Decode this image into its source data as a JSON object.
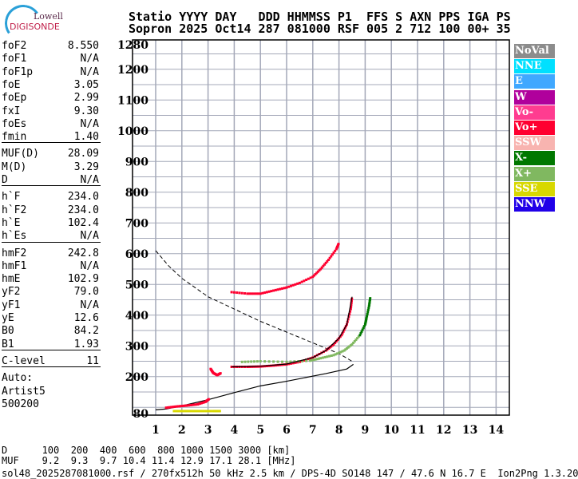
{
  "logo": {
    "line1": "Lowell",
    "line2": "DIGISONDE"
  },
  "header": {
    "line1": "Statio YYYY DAY   DDD HHMMSS P1  FFS S AXN PPS IGA PS",
    "line2": "Sopron 2025 Oct14 287 081000 RSF 005 2 712 100 00+ 35"
  },
  "params": {
    "groups": [
      [
        [
          "foF2",
          "8.550"
        ],
        [
          "foF1",
          "N/A"
        ],
        [
          "foF1p",
          "N/A"
        ],
        [
          "foE",
          "3.05"
        ],
        [
          "foEp",
          "2.99"
        ],
        [
          "fxI",
          "9.30"
        ],
        [
          "foEs",
          "N/A"
        ],
        [
          "fmin",
          "1.40"
        ]
      ],
      [
        [
          "MUF(D)",
          "28.09"
        ],
        [
          "M(D)",
          "3.29"
        ],
        [
          "D",
          "N/A"
        ]
      ],
      [
        [
          "h`F",
          "234.0"
        ],
        [
          "h`F2",
          "234.0"
        ],
        [
          "h`E",
          "102.4"
        ],
        [
          "h`Es",
          "N/A"
        ]
      ],
      [
        [
          "hmF2",
          "242.8"
        ],
        [
          "hmF1",
          "N/A"
        ],
        [
          "hmE",
          "102.9"
        ],
        [
          "yF2",
          "79.0"
        ],
        [
          "yF1",
          "N/A"
        ],
        [
          "yE",
          "12.6"
        ],
        [
          "B0",
          "84.2"
        ],
        [
          "B1",
          "1.93"
        ]
      ],
      [
        [
          "C-level",
          "11"
        ]
      ]
    ],
    "auto": [
      "Auto:",
      "Artist5",
      "500200"
    ]
  },
  "legend": [
    {
      "label": "NoVal",
      "color": "#8c8c8c"
    },
    {
      "label": "NNE",
      "color": "#00e0ff"
    },
    {
      "label": "E",
      "color": "#40a8ff"
    },
    {
      "label": "W",
      "color": "#b0009c"
    },
    {
      "label": "Vo-",
      "color": "#ff3c90"
    },
    {
      "label": "Vo+",
      "color": "#ff0030"
    },
    {
      "label": "SSW",
      "color": "#f8b4b0"
    },
    {
      "label": "X-",
      "color": "#007800"
    },
    {
      "label": "X+",
      "color": "#80b860"
    },
    {
      "label": "SSE",
      "color": "#d8d800"
    },
    {
      "label": "NNW",
      "color": "#2000e8"
    }
  ],
  "footer": {
    "d_row": "D      100  200  400  600  800 1000 1500 3000 [km]",
    "muf_row": "MUF    9.2  9.3  9.7 10.4 11.4 12.9 17.1 28.1 [MHz]",
    "info": "sol48_2025287081000.rsf / 270fx512h 50 kHz 2.5 km / DPS-4D SO148 147 / 47.6 N 16.7 E  Ion2Png 1.3.20"
  },
  "chart_data": {
    "type": "scatter",
    "xlim": [
      1,
      14.5
    ],
    "ylim": [
      80,
      1280
    ],
    "xticks": [
      "1",
      "2",
      "3",
      "4",
      "5",
      "6",
      "7",
      "8",
      "9",
      "10",
      "11",
      "12",
      "13",
      "14"
    ],
    "yticks": [
      "80",
      "200",
      "300",
      "400",
      "500",
      "600",
      "700",
      "800",
      "900",
      "1000",
      "1100",
      "1200",
      "1280"
    ],
    "grid": true,
    "legend_placement": "right",
    "series": [
      {
        "name": "Vo+",
        "color": "#ff0030",
        "points": [
          [
            3.9,
            232
          ],
          [
            4.5,
            232
          ],
          [
            5,
            233
          ],
          [
            5.5,
            236
          ],
          [
            6,
            240
          ],
          [
            6.5,
            248
          ],
          [
            7,
            262
          ],
          [
            7.5,
            285
          ],
          [
            7.8,
            305
          ],
          [
            8.1,
            335
          ],
          [
            8.3,
            370
          ],
          [
            8.45,
            420
          ],
          [
            8.5,
            460
          ]
        ]
      },
      {
        "name": "Vo+",
        "color": "#ff0030",
        "points": [
          [
            1.4,
            99
          ],
          [
            1.8,
            103
          ],
          [
            2.2,
            106
          ],
          [
            2.6,
            110
          ],
          [
            2.9,
            118
          ],
          [
            3.05,
            128
          ]
        ]
      },
      {
        "name": "Vo+",
        "color": "#ff0030",
        "points": [
          [
            3.1,
            225
          ],
          [
            3.2,
            212
          ],
          [
            3.35,
            205
          ],
          [
            3.5,
            212
          ]
        ]
      },
      {
        "name": "Vo+",
        "color": "#ff0030",
        "points": [
          [
            3.9,
            475
          ],
          [
            4.5,
            470
          ],
          [
            5,
            470
          ],
          [
            5.5,
            480
          ],
          [
            6,
            490
          ],
          [
            6.5,
            505
          ],
          [
            7,
            525
          ],
          [
            7.3,
            550
          ],
          [
            7.6,
            580
          ],
          [
            7.9,
            615
          ],
          [
            8,
            635
          ]
        ]
      },
      {
        "name": "X+",
        "color": "#80b860",
        "points": [
          [
            4.3,
            248
          ],
          [
            5,
            250
          ],
          [
            6,
            248
          ],
          [
            6.9,
            252
          ],
          [
            7.3,
            260
          ],
          [
            7.8,
            270
          ],
          [
            8.2,
            285
          ],
          [
            8.5,
            305
          ],
          [
            8.8,
            335
          ]
        ]
      },
      {
        "name": "X-",
        "color": "#007800",
        "points": [
          [
            8.8,
            335
          ],
          [
            9.0,
            370
          ],
          [
            9.05,
            390
          ],
          [
            9.15,
            430
          ],
          [
            9.2,
            460
          ]
        ]
      },
      {
        "name": "SSE",
        "color": "#d8d800",
        "points": [
          [
            1.7,
            88
          ],
          [
            2.2,
            88
          ],
          [
            2.7,
            88
          ],
          [
            3.2,
            88
          ],
          [
            3.5,
            88
          ]
        ]
      }
    ],
    "profile_dashed": [
      [
        1,
        610
      ],
      [
        1.5,
        560
      ],
      [
        2,
        520
      ],
      [
        3,
        460
      ],
      [
        4,
        420
      ],
      [
        5,
        380
      ],
      [
        6,
        345
      ],
      [
        7,
        310
      ],
      [
        8,
        275
      ],
      [
        8.5,
        250
      ]
    ],
    "profile_solid": [
      [
        8.55,
        240
      ],
      [
        8.3,
        225
      ],
      [
        7.5,
        210
      ],
      [
        6,
        185
      ],
      [
        5,
        170
      ],
      [
        4,
        148
      ],
      [
        3,
        125
      ],
      [
        2,
        105
      ],
      [
        1.4,
        95
      ],
      [
        1,
        92
      ]
    ],
    "trace_fit": [
      [
        3.9,
        232
      ],
      [
        5,
        234
      ],
      [
        6,
        241
      ],
      [
        7,
        262
      ],
      [
        7.5,
        285
      ],
      [
        8,
        325
      ],
      [
        8.3,
        370
      ],
      [
        8.5,
        460
      ]
    ]
  }
}
